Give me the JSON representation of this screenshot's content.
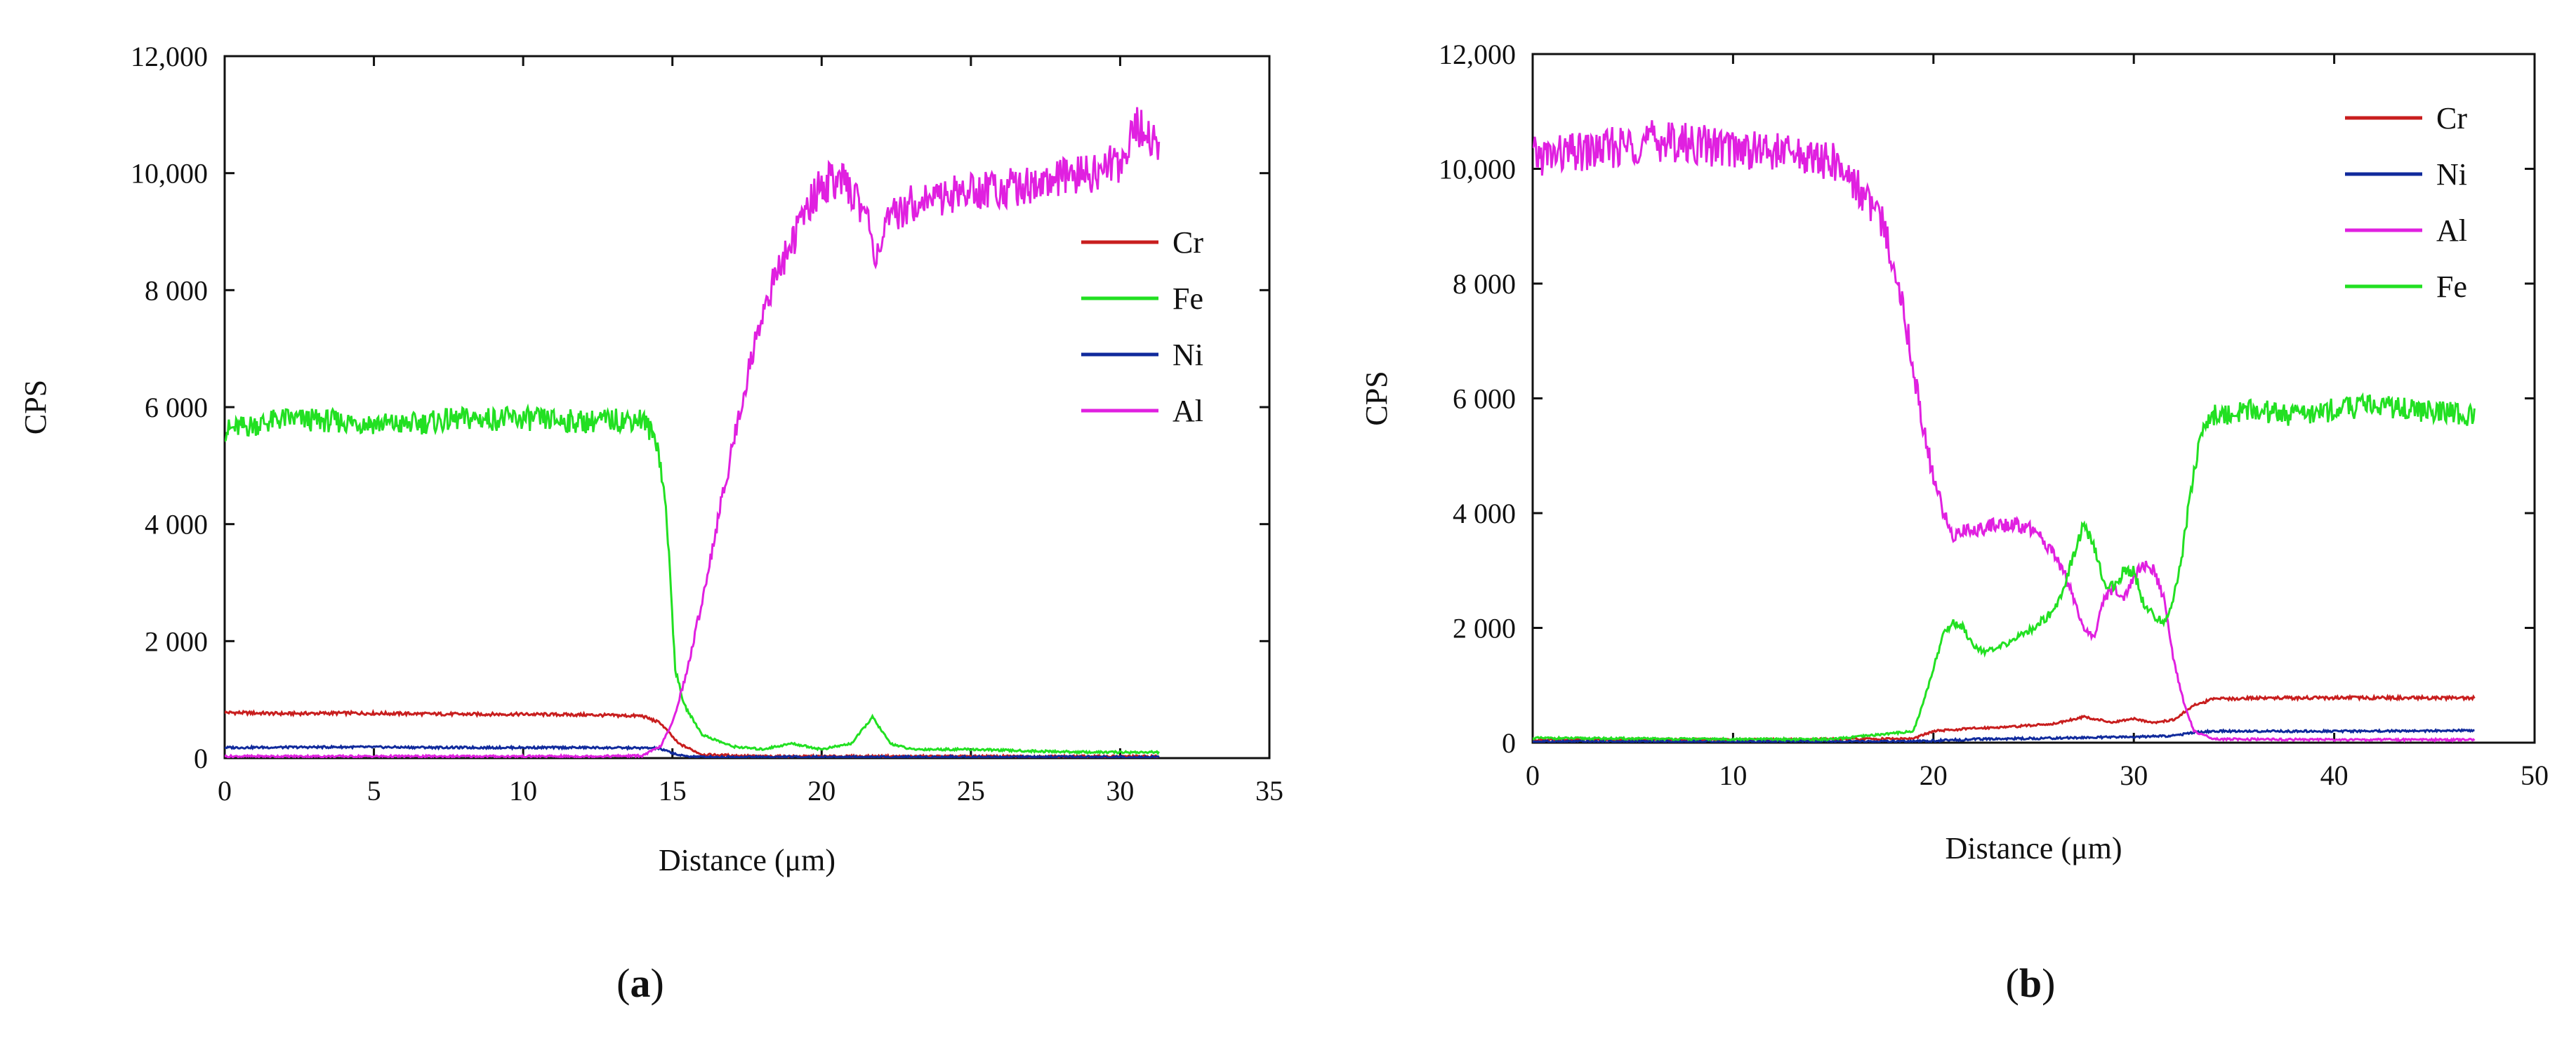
{
  "chart_data": [
    {
      "panel_label": "a",
      "type": "line",
      "xlabel": "Distance (μm)",
      "ylabel": "CPS",
      "xlim": [
        0,
        35
      ],
      "ylim": [
        0,
        12000
      ],
      "xticks": [
        0,
        5,
        10,
        15,
        20,
        25,
        30,
        35
      ],
      "yticks": [
        0,
        2000,
        4000,
        6000,
        8000,
        10000,
        12000
      ],
      "xtick_labels": [
        "0",
        "5",
        "10",
        "15",
        "20",
        "25",
        "30",
        "35"
      ],
      "ytick_labels": [
        "0",
        "2 000",
        "4 000",
        "6 000",
        "8 000",
        "10,000",
        "12,000"
      ],
      "legend_position": "right",
      "series": [
        {
          "name": "Cr",
          "color": "#c81e1e",
          "x": [
            0,
            2,
            4,
            6,
            8,
            10,
            12,
            14,
            14.6,
            15.2,
            16,
            18,
            20,
            22,
            24,
            26,
            28,
            30,
            31.3
          ],
          "y": [
            780,
            760,
            770,
            760,
            750,
            750,
            740,
            720,
            600,
            250,
            60,
            30,
            30,
            30,
            30,
            30,
            30,
            30,
            30
          ]
        },
        {
          "name": "Fe",
          "color": "#22e022",
          "x": [
            0,
            2,
            4,
            6,
            8,
            10,
            12,
            14,
            14.5,
            14.8,
            15.1,
            15.4,
            16,
            17,
            18,
            19,
            20,
            21,
            21.7,
            22.3,
            23,
            25,
            27,
            29,
            31.3
          ],
          "y": [
            5600,
            5800,
            5750,
            5700,
            5800,
            5800,
            5750,
            5800,
            5400,
            4200,
            1500,
            900,
            400,
            200,
            150,
            250,
            150,
            250,
            700,
            250,
            150,
            150,
            120,
            100,
            100
          ]
        },
        {
          "name": "Ni",
          "color": "#102a9c",
          "x": [
            0,
            4,
            8,
            12,
            14.5,
            15.3,
            16,
            20,
            25,
            31.3
          ],
          "y": [
            180,
            190,
            180,
            180,
            170,
            40,
            20,
            20,
            20,
            20
          ]
        },
        {
          "name": "Al",
          "color": "#e020e0",
          "x": [
            0,
            4,
            8,
            12,
            14,
            14.6,
            15,
            15.5,
            16,
            16.5,
            17,
            17.5,
            18,
            18.5,
            19,
            19.5,
            20,
            20.5,
            21,
            21.5,
            21.8,
            22.3,
            23,
            24,
            25,
            26,
            27,
            28,
            29,
            30,
            30.5,
            31.3
          ],
          "y": [
            30,
            30,
            30,
            30,
            40,
            200,
            600,
            1500,
            2700,
            4000,
            5300,
            6500,
            7600,
            8300,
            8800,
            9400,
            9800,
            9900,
            9700,
            9300,
            8600,
            9200,
            9500,
            9600,
            9700,
            9750,
            9800,
            9900,
            10000,
            10200,
            10800,
            10500
          ]
        }
      ]
    },
    {
      "panel_label": "b",
      "type": "line",
      "xlabel": "Distance (μm)",
      "ylabel": "CPS",
      "xlim": [
        0,
        50
      ],
      "ylim": [
        0,
        12000
      ],
      "xticks": [
        0,
        10,
        20,
        30,
        40,
        50
      ],
      "yticks": [
        0,
        2000,
        4000,
        6000,
        8000,
        10000,
        12000
      ],
      "xtick_labels": [
        "0",
        "10",
        "20",
        "30",
        "40",
        "50"
      ],
      "ytick_labels": [
        "0",
        "2 000",
        "4 000",
        "6 000",
        "8 000",
        "10,000",
        "12,000"
      ],
      "legend_position": "top-right",
      "series": [
        {
          "name": "Cr",
          "color": "#c81e1e",
          "x": [
            0,
            5,
            10,
            15,
            19,
            20,
            22,
            24,
            26,
            27.5,
            29,
            30,
            31,
            32,
            33,
            34,
            36,
            40,
            44,
            47
          ],
          "y": [
            50,
            50,
            50,
            60,
            70,
            200,
            250,
            280,
            330,
            450,
            350,
            420,
            350,
            400,
            650,
            760,
            780,
            780,
            780,
            780
          ]
        },
        {
          "name": "Ni",
          "color": "#102a9c",
          "x": [
            0,
            10,
            19,
            22,
            26,
            30,
            32,
            33,
            34,
            40,
            47
          ],
          "y": [
            20,
            20,
            20,
            60,
            80,
            100,
            120,
            180,
            200,
            200,
            210
          ]
        },
        {
          "name": "Al",
          "color": "#e020e0",
          "x": [
            0,
            3,
            6,
            9,
            12,
            14,
            15,
            16,
            17,
            17.5,
            18,
            18.5,
            19,
            19.5,
            20,
            20.5,
            21,
            21.5,
            22,
            23,
            24,
            25,
            26,
            26.5,
            27,
            27.5,
            28,
            28.5,
            29,
            29.5,
            30,
            30.5,
            31,
            31.5,
            32,
            32.5,
            33,
            34,
            40,
            47
          ],
          "y": [
            10200,
            10300,
            10500,
            10400,
            10300,
            10200,
            10100,
            9800,
            9300,
            9000,
            8400,
            7600,
            6500,
            5500,
            4600,
            4000,
            3600,
            3700,
            3700,
            3800,
            3800,
            3700,
            3300,
            3000,
            2500,
            2000,
            1800,
            2500,
            2700,
            2500,
            2900,
            3100,
            3000,
            2500,
            1400,
            700,
            200,
            60,
            50,
            50
          ]
        },
        {
          "name": "Fe",
          "color": "#22e022",
          "x": [
            0,
            5,
            10,
            15,
            19,
            19.5,
            20,
            20.5,
            21,
            21.5,
            22,
            22.5,
            23,
            24,
            25,
            26,
            26.5,
            27,
            27.5,
            28,
            28.5,
            29,
            29.5,
            30,
            30.5,
            31,
            31.5,
            32,
            32.5,
            33,
            33.5,
            34,
            36,
            38,
            40,
            42,
            44,
            47
          ],
          "y": [
            80,
            70,
            60,
            60,
            200,
            700,
            1300,
            1900,
            2100,
            2000,
            1700,
            1600,
            1600,
            1800,
            2000,
            2300,
            2700,
            3300,
            3800,
            3400,
            2800,
            2700,
            3000,
            3000,
            2400,
            2200,
            2100,
            2500,
            3500,
            4800,
            5500,
            5700,
            5800,
            5700,
            5800,
            5900,
            5800,
            5700
          ]
        }
      ]
    }
  ]
}
